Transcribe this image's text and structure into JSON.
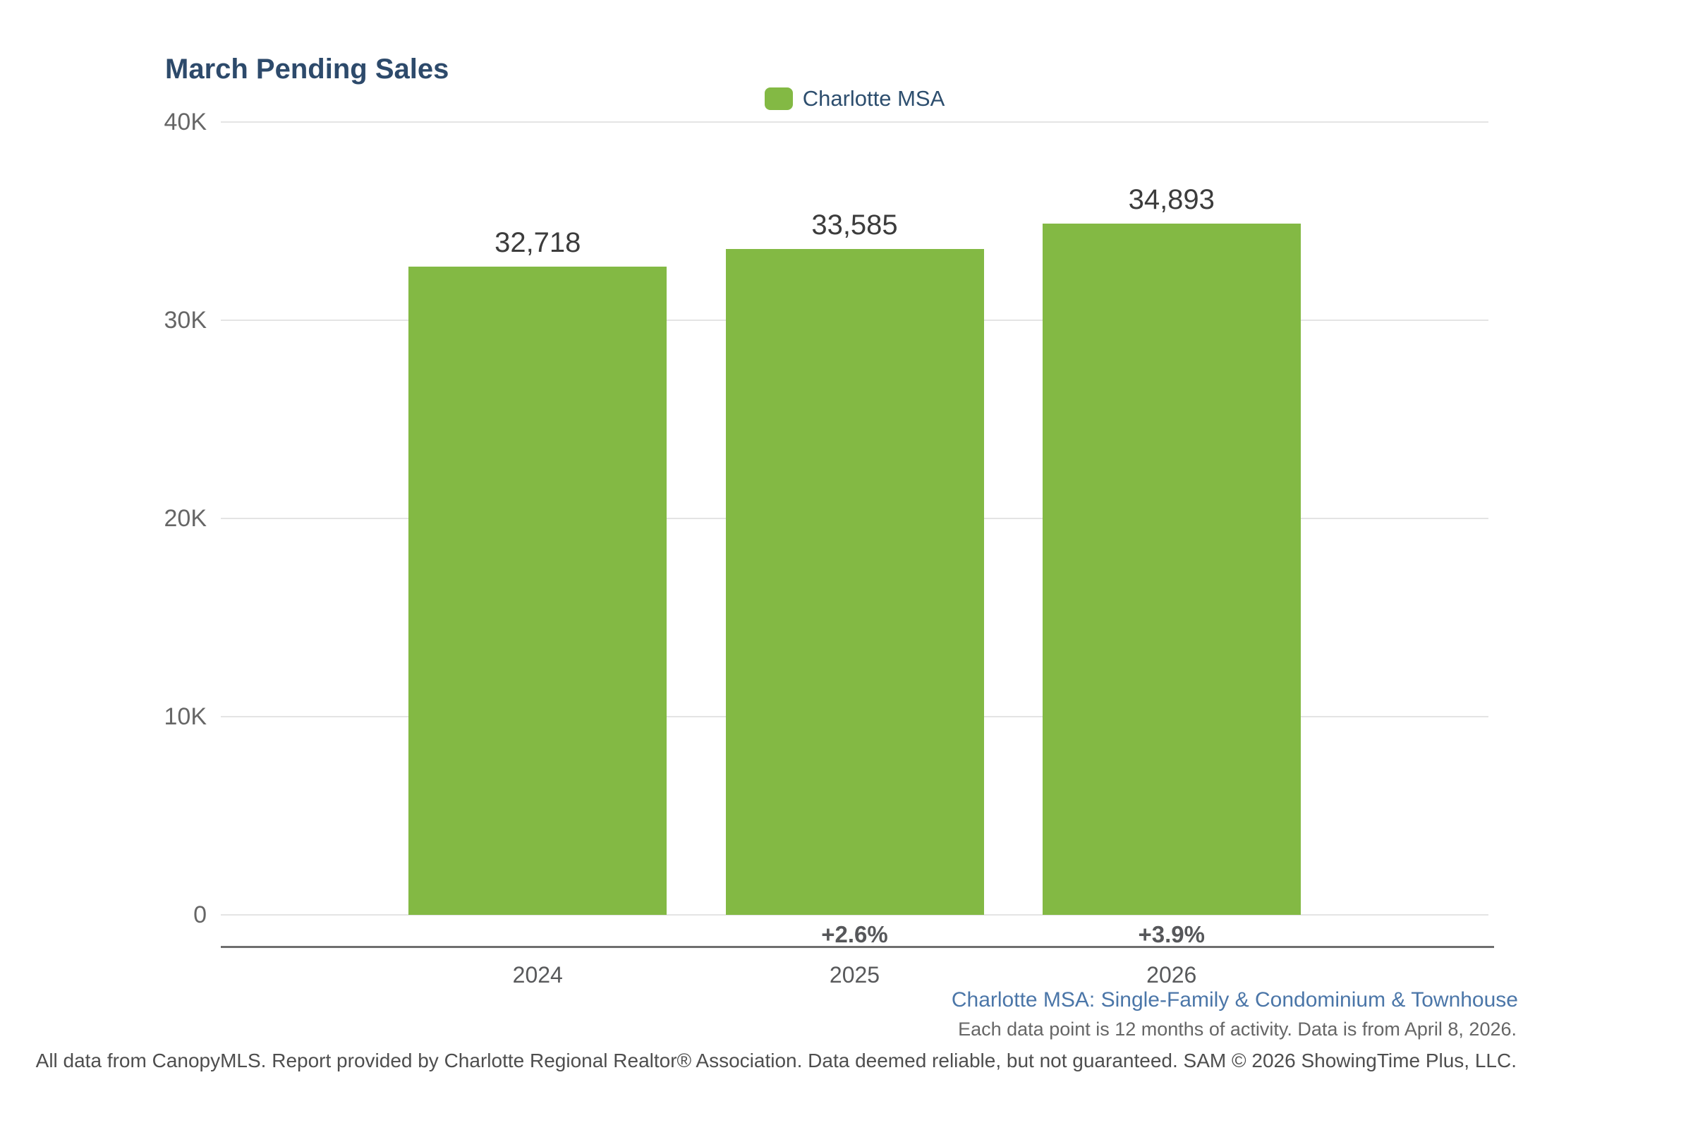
{
  "header": {
    "title": "March Pending Sales",
    "title_color": "#2D4A6B"
  },
  "legend": {
    "items": [
      {
        "label": "Charlotte MSA",
        "swatch_color": "#83B944"
      }
    ]
  },
  "chart_data": {
    "type": "bar",
    "title": "March Pending Sales",
    "categories": [
      "2024",
      "2025",
      "2026"
    ],
    "series": [
      {
        "name": "Charlotte MSA",
        "values": [
          32718,
          33585,
          34893
        ]
      }
    ],
    "value_labels": [
      "32,718",
      "33,585",
      "34,893"
    ],
    "pct_change_labels": [
      "",
      "+2.6%",
      "+3.9%"
    ],
    "ylim": [
      0,
      40000
    ],
    "yticks": [
      {
        "value": 40000,
        "label": "40K"
      },
      {
        "value": 30000,
        "label": "30K"
      },
      {
        "value": 20000,
        "label": "20K"
      },
      {
        "value": 10000,
        "label": "10K"
      },
      {
        "value": 0,
        "label": "0"
      }
    ],
    "bar_color": "#83B944",
    "grid": "horizontal-only",
    "legend_position": "top-center",
    "xlabel": "",
    "ylabel": ""
  },
  "footnotes": {
    "segment": "Charlotte MSA: Single-Family & Condominium & Townhouse",
    "segment_color": "#4B76A8",
    "activity": "Each data point is 12 months of activity. Data is from April 8, 2026.",
    "disclaimer": "All data from CanopyMLS. Report provided by Charlotte Regional Realtor® Association. Data deemed reliable, but not guaranteed. SAM © 2026 ShowingTime Plus, LLC."
  }
}
